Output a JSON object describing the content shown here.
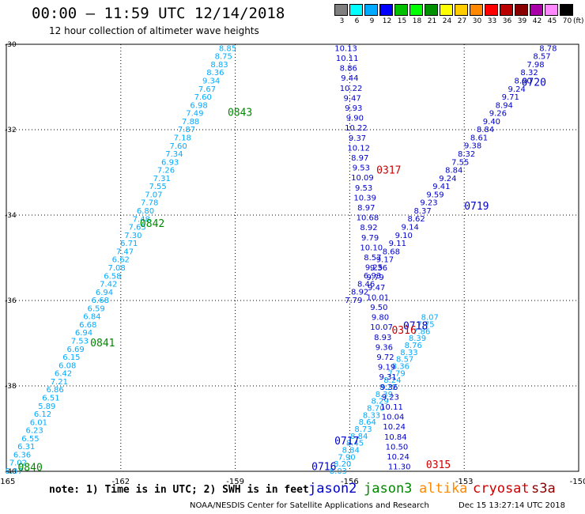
{
  "title": "00:00 – 11:59 UTC 12/14/2018",
  "subtitle": "12 hour collection of altimeter wave heights",
  "colorbar": {
    "labels": [
      "3",
      "6",
      "9",
      "12",
      "15",
      "18",
      "21",
      "24",
      "27",
      "30",
      "33",
      "36",
      "39",
      "42",
      "45",
      "70"
    ],
    "unit": "(ft)",
    "colors": [
      "#7f7f7f",
      "#00ffff",
      "#00aaff",
      "#0000ff",
      "#00c000",
      "#00ff00",
      "#009000",
      "#ffff00",
      "#ffcc00",
      "#ff8800",
      "#ff0000",
      "#bb0000",
      "#880000",
      "#aa00aa",
      "#ff88ff",
      "#000000"
    ]
  },
  "footer": {
    "note": "note: 1) Time is in UTC; 2) SWH is in feet",
    "satellites": [
      {
        "name": "jason2",
        "color": "#0000cc"
      },
      {
        "name": "jason3",
        "color": "#008800"
      },
      {
        "name": "altika",
        "color": "#ff8800"
      },
      {
        "name": "cryosat",
        "color": "#cc0000"
      },
      {
        "name": "s3a",
        "color": "#880000"
      }
    ],
    "credit": "NOAA/NESDIS Center for Satellite Applications and Research",
    "timestamp": "Dec 15 13:27:14 UTC 2018"
  },
  "chart_data": {
    "type": "scatter",
    "xlim": [
      -165,
      -150
    ],
    "ylim": [
      -40,
      -30
    ],
    "x_ticks": [
      "-165",
      "-162",
      "-159",
      "-156",
      "-153",
      "-150"
    ],
    "y_ticks": [
      "-30",
      "-32",
      "-34",
      "-36",
      "-38",
      "-40"
    ],
    "grid": true,
    "series": [
      {
        "color": "#00aaff",
        "track": [
          [
            -164.8,
            -40.0
          ],
          [
            -159.2,
            -30.1
          ]
        ],
        "values": [
          "8.37",
          "7.02",
          "6.36",
          "6.31",
          "6.55",
          "6.23",
          "6.01",
          "6.12",
          "5.89",
          "6.51",
          "6.86",
          "7.21",
          "6.42",
          "6.08",
          "6.15",
          "6.69",
          "7.53",
          "6.94",
          "6.68",
          "6.84",
          "6.59",
          "6.68",
          "6.94",
          "7.42",
          "6.58",
          "7.08",
          "6.62",
          "7.47",
          "6.71",
          "7.30",
          "7.65",
          "7.48",
          "6.80",
          "7.78",
          "7.07",
          "7.55",
          "7.31",
          "7.26",
          "6.93",
          "7.34",
          "7.60",
          "7.18",
          "7.87",
          "7.88",
          "7.49",
          "6.98",
          "7.60",
          "7.67",
          "9.34",
          "8.36",
          "8.83",
          "8.75",
          "8.85"
        ],
        "labels": [
          {
            "text": "0840",
            "color": "#008800",
            "x": -164.7,
            "y": -39.92
          },
          {
            "text": "0841",
            "color": "#008800",
            "x": -162.8,
            "y": -37.0
          },
          {
            "text": "0842",
            "color": "#008800",
            "x": -161.5,
            "y": -34.2
          },
          {
            "text": "0843",
            "color": "#008800",
            "x": -159.2,
            "y": -31.6
          }
        ]
      },
      {
        "color": "#00aaff",
        "track": [
          [
            -156.3,
            -40.0
          ],
          [
            -153.9,
            -36.4
          ]
        ],
        "values": [
          "8.03",
          "8.20",
          "7.90",
          "8.84",
          "8.45",
          "8.84",
          "8.73",
          "8.64",
          "8.33",
          "8.70",
          "8.29",
          "8.39",
          "8.22",
          "8.24",
          "7.79",
          "8.36",
          "8.57",
          "8.33",
          "8.76",
          "8.39",
          "7.86",
          "7.75",
          "8.07"
        ],
        "labels": []
      },
      {
        "color": "#0000cc",
        "track": [
          [
            -155.9,
            -36.0
          ],
          [
            -150.8,
            -30.1
          ]
        ],
        "values": [
          "7.79",
          "8.92",
          "8.46",
          "6.93",
          "9.36",
          "9.17",
          "8.68",
          "9.11",
          "9.10",
          "9.14",
          "8.62",
          "8.37",
          "9.23",
          "9.59",
          "9.41",
          "9.24",
          "8.84",
          "7.55",
          "8.32",
          "9.38",
          "8.61",
          "8.84",
          "9.40",
          "9.26",
          "8.94",
          "9.71",
          "9.24",
          "8.60",
          "8.32",
          "7.98",
          "8.57",
          "8.78"
        ],
        "labels": [
          {
            "text": "0716",
            "color": "#0000cc",
            "x": -157.0,
            "y": -39.9
          },
          {
            "text": "0717",
            "color": "#0000cc",
            "x": -156.4,
            "y": -39.3
          },
          {
            "text": "0718",
            "color": "#0000cc",
            "x": -154.6,
            "y": -36.6
          },
          {
            "text": "0719",
            "color": "#0000cc",
            "x": -153.0,
            "y": -33.8
          },
          {
            "text": "0720",
            "color": "#0000cc",
            "x": -151.5,
            "y": -30.9
          }
        ]
      },
      {
        "color": "#0000cc",
        "track": [
          [
            -156.1,
            -30.1
          ],
          [
            -154.7,
            -39.9
          ]
        ],
        "values": [
          "10.13",
          "10.11",
          "8.86",
          "9.44",
          "10.22",
          "9.47",
          "9.93",
          "9.90",
          "10.22",
          "9.37",
          "10.12",
          "8.97",
          "9.53",
          "10.09",
          "9.53",
          "10.39",
          "8.97",
          "10.68",
          "8.92",
          "9.79",
          "10.10",
          "8.57",
          "9.25",
          "9.79",
          "9.47",
          "10.01",
          "9.50",
          "9.80",
          "10.07",
          "8.93",
          "9.36",
          "9.72",
          "9.19",
          "9.31",
          "9.36",
          "9.23",
          "10.11",
          "10.04",
          "10.24",
          "10.84",
          "10.50",
          "10.24",
          "11.30"
        ],
        "labels": [
          {
            "text": "0315",
            "color": "#cc0000",
            "x": -154.0,
            "y": -39.85
          },
          {
            "text": "0316",
            "color": "#cc0000",
            "x": -154.9,
            "y": -36.7
          },
          {
            "text": "0317",
            "color": "#cc0000",
            "x": -155.3,
            "y": -32.95
          }
        ]
      }
    ]
  }
}
